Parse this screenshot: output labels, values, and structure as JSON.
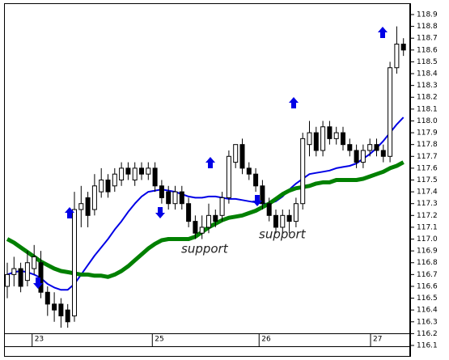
{
  "chart_data": {
    "type": "candlestick",
    "annotations": [
      "support",
      "support"
    ],
    "ylim": [
      116.0,
      119.0
    ],
    "yticks": [
      116.1,
      116.2,
      116.3,
      116.4,
      116.5,
      116.6,
      116.7,
      116.8,
      116.9,
      {
        "value": 117,
        "label": "117.0"
      },
      117.1,
      117.2,
      117.3,
      117.4,
      117.5,
      117.6,
      117.7,
      117.8,
      117.9,
      {
        "value": 118,
        "label": "118.0"
      },
      118.1,
      118.2,
      118.3,
      118.4,
      118.5,
      118.6,
      118.7,
      118.8,
      118.9
    ],
    "xticks": [
      {
        "value": 3.7,
        "label": "23"
      },
      {
        "value": 21.6,
        "label": "25"
      },
      {
        "value": 37.5,
        "label": "26"
      },
      {
        "value": 54.1,
        "label": "27"
      }
    ],
    "up_color": "#ffffff",
    "down_color": "#000000",
    "open": [
      116.6,
      116.7,
      116.75,
      116.65,
      116.75,
      116.8,
      116.55,
      116.45,
      116.45,
      116.4,
      116.35,
      117.25,
      117.35,
      117.25,
      117.4,
      117.5,
      117.45,
      117.5,
      117.6,
      117.5,
      117.6,
      117.55,
      117.6,
      117.45,
      117.4,
      117.3,
      117.4,
      117.3,
      117.15,
      117.05,
      117.1,
      117.2,
      117.2,
      117.35,
      117.65,
      117.8,
      117.6,
      117.55,
      117.45,
      117.3,
      117.2,
      117.1,
      117.2,
      117.15,
      117.3,
      117.8,
      117.9,
      117.75,
      117.95,
      117.85,
      117.9,
      117.8,
      117.75,
      117.65,
      117.75,
      117.8,
      117.75,
      117.7,
      118.45,
      118.65
    ],
    "high": [
      116.8,
      116.85,
      116.8,
      116.9,
      116.95,
      116.9,
      116.6,
      116.55,
      116.5,
      116.45,
      117.4,
      117.45,
      117.4,
      117.55,
      117.6,
      117.55,
      117.6,
      117.65,
      117.65,
      117.65,
      117.65,
      117.65,
      117.65,
      117.5,
      117.45,
      117.45,
      117.45,
      117.35,
      117.2,
      117.2,
      117.3,
      117.25,
      117.4,
      117.75,
      117.8,
      117.85,
      117.65,
      117.6,
      117.5,
      117.35,
      117.25,
      117.25,
      117.25,
      117.35,
      117.9,
      118.0,
      117.95,
      118.0,
      118.0,
      117.95,
      117.95,
      117.85,
      117.8,
      117.8,
      117.85,
      117.85,
      117.8,
      118.5,
      118.8,
      118.7
    ],
    "low": [
      116.5,
      116.6,
      116.55,
      116.6,
      116.7,
      116.5,
      116.35,
      116.3,
      116.25,
      116.25,
      116.3,
      117.1,
      117.1,
      117.2,
      117.35,
      117.35,
      117.4,
      117.45,
      117.5,
      117.45,
      117.5,
      117.5,
      117.4,
      117.3,
      117.25,
      117.25,
      117.25,
      117.1,
      117.0,
      117.0,
      117.05,
      117.1,
      117.15,
      117.3,
      117.6,
      117.55,
      117.5,
      117.4,
      117.25,
      117.15,
      117.05,
      117.05,
      117.05,
      117.1,
      117.25,
      117.7,
      117.7,
      117.7,
      117.8,
      117.8,
      117.75,
      117.7,
      117.6,
      117.6,
      117.7,
      117.7,
      117.65,
      117.65,
      118.4,
      118.55
    ],
    "close": [
      116.7,
      116.75,
      116.6,
      116.8,
      116.85,
      116.55,
      116.45,
      116.4,
      116.35,
      116.3,
      117.25,
      117.3,
      117.2,
      117.45,
      117.5,
      117.4,
      117.55,
      117.6,
      117.55,
      117.6,
      117.55,
      117.6,
      117.45,
      117.35,
      117.3,
      117.4,
      117.3,
      117.15,
      117.05,
      117.1,
      117.2,
      117.15,
      117.35,
      117.7,
      117.8,
      117.6,
      117.55,
      117.45,
      117.3,
      117.2,
      117.1,
      117.2,
      117.15,
      117.3,
      117.85,
      117.9,
      117.75,
      117.95,
      117.85,
      117.9,
      117.8,
      117.75,
      117.65,
      117.75,
      117.8,
      117.75,
      117.7,
      118.45,
      118.65,
      118.6
    ],
    "series": [
      {
        "color": "#0000e6",
        "width": 2,
        "values": [
          116.7,
          116.72,
          116.73,
          116.72,
          116.7,
          116.67,
          116.62,
          116.59,
          116.57,
          116.57,
          116.62,
          116.7,
          116.78,
          116.86,
          116.93,
          117.0,
          117.08,
          117.15,
          117.23,
          117.3,
          117.36,
          117.4,
          117.41,
          117.42,
          117.41,
          117.4,
          117.38,
          117.36,
          117.35,
          117.35,
          117.36,
          117.36,
          117.35,
          117.34,
          117.34,
          117.33,
          117.32,
          117.31,
          117.3,
          117.3,
          117.32,
          117.36,
          117.42,
          117.47,
          117.51,
          117.55,
          117.56,
          117.57,
          117.58,
          117.6,
          117.61,
          117.62,
          117.64,
          117.68,
          117.72,
          117.77,
          117.83,
          117.9,
          117.97,
          118.03
        ]
      },
      {
        "color": "#008000",
        "width": 5,
        "values": [
          117.0,
          116.97,
          116.93,
          116.89,
          116.85,
          116.81,
          116.78,
          116.75,
          116.73,
          116.72,
          116.71,
          116.7,
          116.7,
          116.69,
          116.69,
          116.68,
          116.7,
          116.73,
          116.77,
          116.82,
          116.87,
          116.92,
          116.96,
          116.99,
          117.0,
          117.0,
          117.0,
          117.0,
          117.02,
          117.06,
          117.1,
          117.13,
          117.16,
          117.18,
          117.19,
          117.2,
          117.22,
          117.24,
          117.27,
          117.3,
          117.34,
          117.38,
          117.41,
          117.43,
          117.44,
          117.45,
          117.47,
          117.48,
          117.48,
          117.5,
          117.5,
          117.5,
          117.5,
          117.51,
          117.53,
          117.55,
          117.57,
          117.6,
          117.62,
          117.65
        ]
      }
    ]
  }
}
